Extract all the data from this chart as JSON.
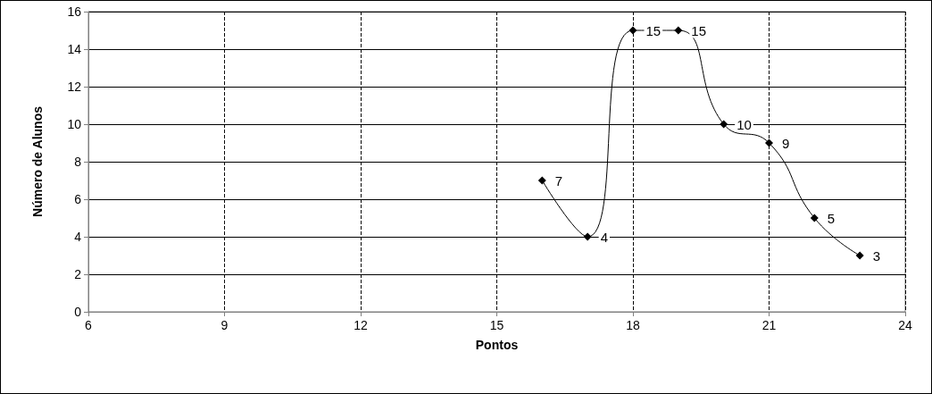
{
  "chart_data": {
    "type": "line",
    "xlabel": "Pontos",
    "ylabel": "Número de Alunos",
    "x": [
      16,
      17,
      18,
      19,
      20,
      21,
      22,
      23
    ],
    "series": [
      {
        "color": "#000000",
        "values": [
          7,
          4,
          15,
          15,
          10,
          9,
          5,
          3
        ]
      }
    ],
    "xlim": [
      6,
      24
    ],
    "xticks": [
      6,
      9,
      12,
      15,
      18,
      21,
      24
    ],
    "ylim": [
      0,
      16
    ],
    "yticks": [
      0,
      2,
      4,
      6,
      8,
      10,
      12,
      14,
      16
    ],
    "grid": true,
    "marker": "diamond",
    "line_style": "solid",
    "data_labels": true
  }
}
